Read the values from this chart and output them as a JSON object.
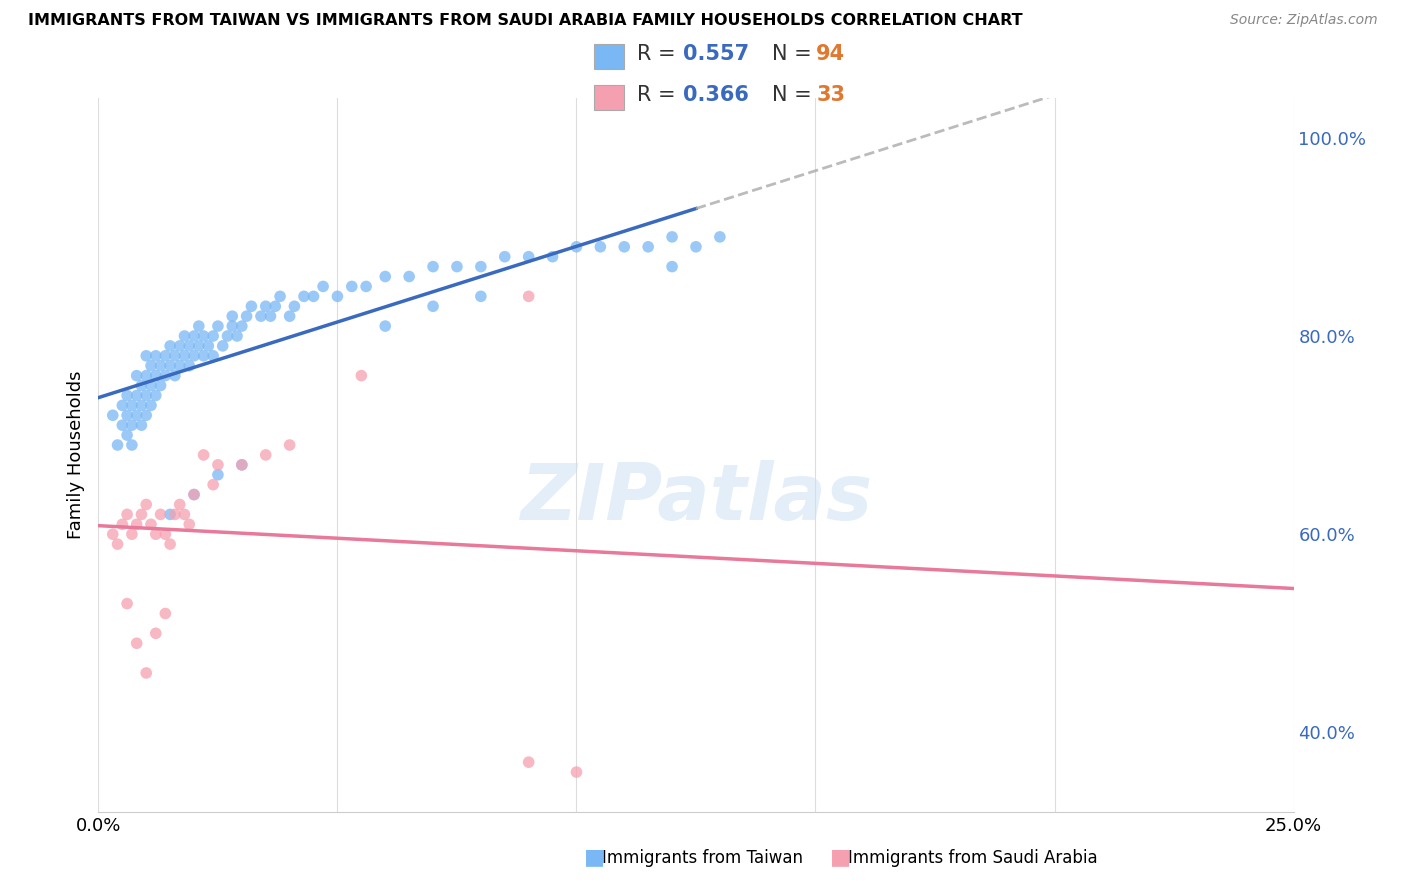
{
  "title": "IMMIGRANTS FROM TAIWAN VS IMMIGRANTS FROM SAUDI ARABIA FAMILY HOUSEHOLDS CORRELATION CHART",
  "source": "Source: ZipAtlas.com",
  "ylabel": "Family Households",
  "xlim": [
    0.0,
    0.25
  ],
  "ylim": [
    0.32,
    1.04
  ],
  "right_yticks": [
    0.4,
    0.6,
    0.8,
    1.0
  ],
  "right_yticklabels": [
    "40.0%",
    "60.0%",
    "80.0%",
    "100.0%"
  ],
  "bottom_xticks": [
    0.0,
    0.05,
    0.1,
    0.15,
    0.2,
    0.25
  ],
  "taiwan_color": "#7ab8f5",
  "saudi_color": "#f5a0b0",
  "taiwan_line_color": "#3a6abf",
  "saudi_line_color": "#e8799a",
  "taiwan_dash_color": "#aaaaaa",
  "taiwan_R": 0.557,
  "taiwan_N": 94,
  "saudi_R": 0.366,
  "saudi_N": 33,
  "taiwan_scatter_x": [
    0.003,
    0.004,
    0.005,
    0.005,
    0.006,
    0.006,
    0.006,
    0.007,
    0.007,
    0.007,
    0.008,
    0.008,
    0.008,
    0.009,
    0.009,
    0.009,
    0.01,
    0.01,
    0.01,
    0.01,
    0.011,
    0.011,
    0.011,
    0.012,
    0.012,
    0.012,
    0.013,
    0.013,
    0.014,
    0.014,
    0.015,
    0.015,
    0.016,
    0.016,
    0.017,
    0.017,
    0.018,
    0.018,
    0.019,
    0.019,
    0.02,
    0.02,
    0.021,
    0.021,
    0.022,
    0.022,
    0.023,
    0.024,
    0.024,
    0.025,
    0.026,
    0.027,
    0.028,
    0.028,
    0.029,
    0.03,
    0.031,
    0.032,
    0.034,
    0.035,
    0.036,
    0.037,
    0.038,
    0.04,
    0.041,
    0.043,
    0.045,
    0.047,
    0.05,
    0.053,
    0.056,
    0.06,
    0.065,
    0.07,
    0.075,
    0.08,
    0.085,
    0.09,
    0.095,
    0.1,
    0.105,
    0.11,
    0.115,
    0.12,
    0.125,
    0.13,
    0.06,
    0.07,
    0.08,
    0.12,
    0.015,
    0.02,
    0.025,
    0.03
  ],
  "taiwan_scatter_y": [
    0.72,
    0.69,
    0.71,
    0.73,
    0.7,
    0.72,
    0.74,
    0.69,
    0.71,
    0.73,
    0.72,
    0.74,
    0.76,
    0.71,
    0.73,
    0.75,
    0.72,
    0.74,
    0.76,
    0.78,
    0.73,
    0.75,
    0.77,
    0.74,
    0.76,
    0.78,
    0.75,
    0.77,
    0.76,
    0.78,
    0.77,
    0.79,
    0.76,
    0.78,
    0.77,
    0.79,
    0.78,
    0.8,
    0.77,
    0.79,
    0.78,
    0.8,
    0.79,
    0.81,
    0.78,
    0.8,
    0.79,
    0.78,
    0.8,
    0.81,
    0.79,
    0.8,
    0.81,
    0.82,
    0.8,
    0.81,
    0.82,
    0.83,
    0.82,
    0.83,
    0.82,
    0.83,
    0.84,
    0.82,
    0.83,
    0.84,
    0.84,
    0.85,
    0.84,
    0.85,
    0.85,
    0.86,
    0.86,
    0.87,
    0.87,
    0.87,
    0.88,
    0.88,
    0.88,
    0.89,
    0.89,
    0.89,
    0.89,
    0.9,
    0.89,
    0.9,
    0.81,
    0.83,
    0.84,
    0.87,
    0.62,
    0.64,
    0.66,
    0.67
  ],
  "saudi_scatter_x": [
    0.003,
    0.004,
    0.005,
    0.006,
    0.007,
    0.008,
    0.009,
    0.01,
    0.011,
    0.012,
    0.013,
    0.014,
    0.015,
    0.016,
    0.017,
    0.018,
    0.019,
    0.02,
    0.022,
    0.024,
    0.025,
    0.03,
    0.035,
    0.04,
    0.055,
    0.09,
    0.006,
    0.008,
    0.01,
    0.012,
    0.014,
    0.09,
    0.1
  ],
  "saudi_scatter_y": [
    0.6,
    0.59,
    0.61,
    0.62,
    0.6,
    0.61,
    0.62,
    0.63,
    0.61,
    0.6,
    0.62,
    0.6,
    0.59,
    0.62,
    0.63,
    0.62,
    0.61,
    0.64,
    0.68,
    0.65,
    0.67,
    0.67,
    0.68,
    0.69,
    0.76,
    0.84,
    0.53,
    0.49,
    0.46,
    0.5,
    0.52,
    0.37,
    0.36
  ],
  "taiwan_line_xrange": [
    0.0,
    0.125
  ],
  "taiwan_dash_xrange": [
    0.125,
    0.25
  ],
  "saudi_line_xrange": [
    0.0,
    0.25
  ],
  "n_color": "#e07830",
  "r_color": "#3a6abf",
  "legend_r_label": "R = ",
  "legend_n_label": "N = "
}
